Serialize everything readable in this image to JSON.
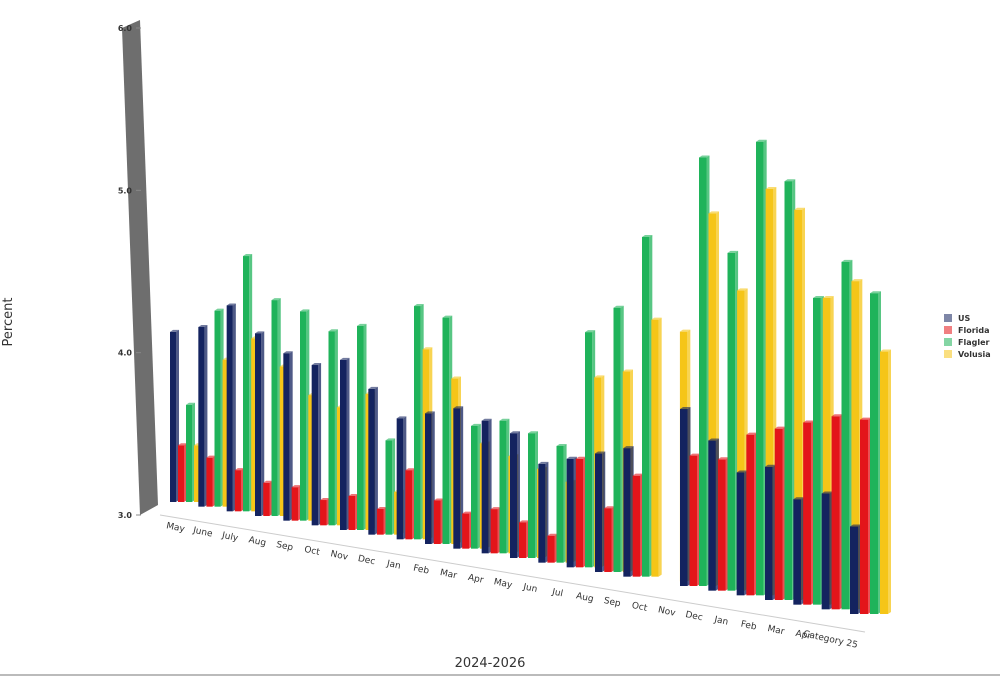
{
  "chart_data": {
    "type": "bar3d",
    "x_axis_title": "2024-2026",
    "y_axis_title": "Percent",
    "categories": [
      "May",
      "June",
      "July",
      "Aug",
      "Sep",
      "Oct",
      "Nov",
      "Dec",
      "Jan",
      "Feb",
      "Mar",
      "Apr",
      "May",
      "Jun",
      "Jul",
      "Aug",
      "Sep",
      "Oct",
      "Nov",
      "Dec",
      "Jan",
      "Feb",
      "Mar",
      "Apr",
      "Category 25"
    ],
    "series": [
      {
        "name": "US",
        "color": "#14235f",
        "values": [
          4.05,
          4.1,
          4.25,
          4.1,
          4.0,
          3.95,
          4.0,
          3.85,
          3.7,
          3.75,
          3.8,
          3.75,
          3.7,
          3.55,
          3.6,
          3.65,
          3.7,
          null,
          3.95,
          3.8,
          3.65,
          3.7,
          3.55,
          3.6,
          3.45
        ]
      },
      {
        "name": "Florida",
        "color": "#e3151a",
        "values": [
          3.35,
          3.3,
          3.25,
          3.2,
          3.2,
          3.15,
          3.2,
          3.15,
          3.4,
          3.25,
          3.2,
          3.25,
          3.2,
          3.15,
          3.6,
          3.35,
          3.55,
          null,
          3.7,
          3.7,
          3.85,
          3.9,
          3.95,
          4.0,
          4.0
        ]
      },
      {
        "name": "Flagler",
        "color": "#1fb35a",
        "values": [
          3.6,
          4.2,
          4.55,
          4.3,
          4.25,
          4.15,
          4.2,
          3.55,
          4.35,
          4.3,
          3.7,
          3.75,
          3.7,
          3.65,
          4.3,
          4.45,
          4.85,
          null,
          5.3,
          4.8,
          5.4,
          5.2,
          4.6,
          4.8,
          4.65
        ]
      },
      {
        "name": "Volusia",
        "color": "#f5c518",
        "values": [
          3.35,
          3.9,
          4.05,
          3.9,
          3.75,
          3.7,
          3.8,
          3.25,
          4.1,
          3.95,
          3.6,
          3.55,
          3.5,
          3.45,
          4.05,
          4.1,
          4.4,
          4.35,
          5.0,
          4.6,
          5.15,
          5.05,
          4.6,
          4.7,
          4.35
        ]
      }
    ],
    "ylim": [
      3,
      6
    ],
    "yticks": [
      {
        "value": 3,
        "label": "3.0"
      },
      {
        "value": 4,
        "label": "4.0"
      },
      {
        "value": 5,
        "label": "5.0"
      },
      {
        "value": 6,
        "label": "6.0"
      }
    ],
    "legend": "right"
  }
}
